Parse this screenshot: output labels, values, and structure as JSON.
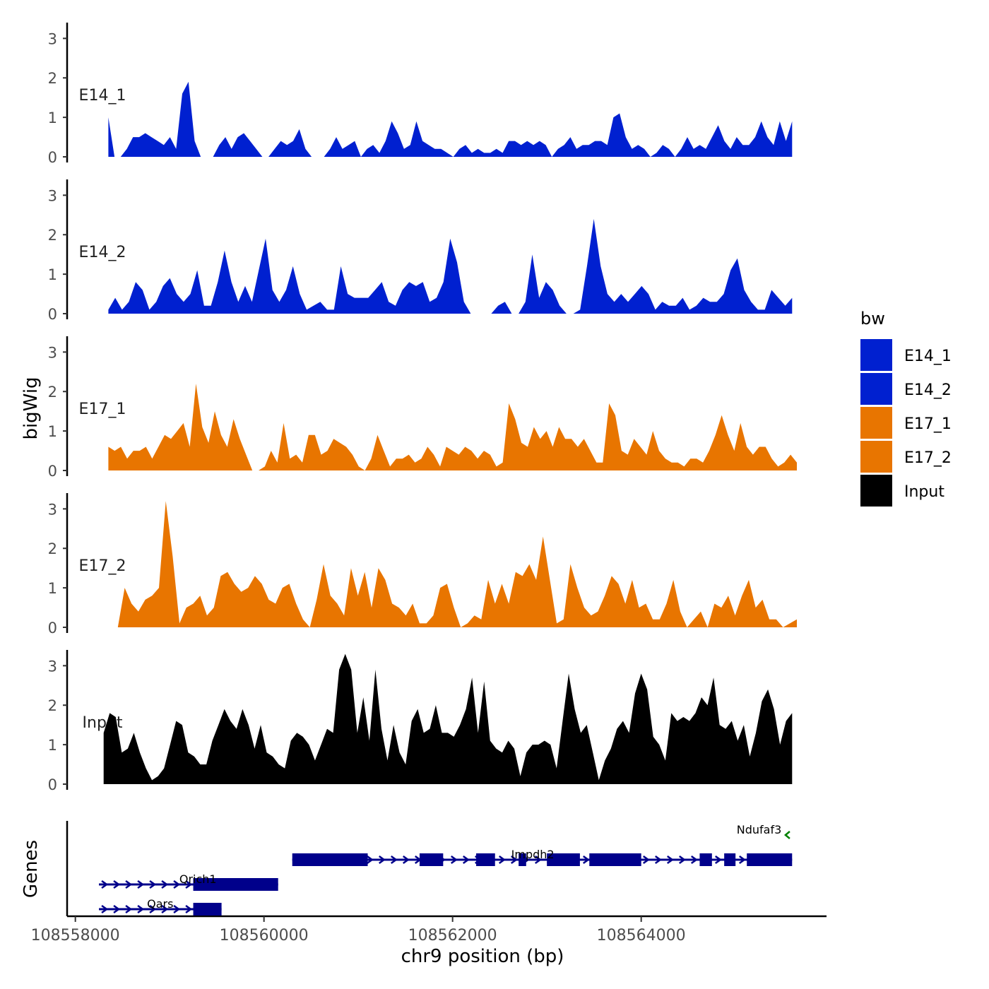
{
  "chart_data": {
    "type": "area",
    "ylabel": "bigWig",
    "xlabel": "chr9 position (bp)",
    "genes_label": "Genes",
    "ylim": [
      0,
      3.4
    ],
    "xlim": [
      108557950,
      108565950
    ],
    "y_ticks": [
      "0",
      "1",
      "2",
      "3"
    ],
    "x_ticks": [
      {
        "value": 108558000,
        "label": "108558000"
      },
      {
        "value": 108560000,
        "label": "108560000"
      },
      {
        "value": 108562000,
        "label": "108562000"
      },
      {
        "value": 108564000,
        "label": "108564000"
      }
    ],
    "legend": {
      "title": "bw",
      "entries": [
        {
          "label": "E14_1",
          "color": "#0020D0"
        },
        {
          "label": "E14_2",
          "color": "#0020D0"
        },
        {
          "label": "E17_1",
          "color": "#E87500"
        },
        {
          "label": "E17_2",
          "color": "#E87500"
        },
        {
          "label": "Input",
          "color": "#000000"
        }
      ]
    },
    "series": [
      {
        "name": "E14_1",
        "color": "#0020D0",
        "x_start": 108558350,
        "x_end": 108565600,
        "values": [
          1.0,
          0.0,
          0.0,
          0.2,
          0.5,
          0.5,
          0.6,
          0.5,
          0.4,
          0.3,
          0.5,
          0.2,
          1.6,
          1.9,
          0.4,
          0.0,
          0.0,
          0.0,
          0.3,
          0.5,
          0.2,
          0.5,
          0.6,
          0.4,
          0.2,
          0.0,
          0.0,
          0.2,
          0.4,
          0.3,
          0.4,
          0.7,
          0.2,
          0.0,
          0.0,
          0.0,
          0.2,
          0.5,
          0.2,
          0.3,
          0.4,
          0.0,
          0.2,
          0.3,
          0.1,
          0.4,
          0.9,
          0.6,
          0.2,
          0.3,
          0.9,
          0.4,
          0.3,
          0.2,
          0.2,
          0.1,
          0.0,
          0.2,
          0.3,
          0.1,
          0.2,
          0.1,
          0.1,
          0.2,
          0.1,
          0.4,
          0.4,
          0.3,
          0.4,
          0.3,
          0.4,
          0.3,
          0.0,
          0.2,
          0.3,
          0.5,
          0.2,
          0.3,
          0.3,
          0.4,
          0.4,
          0.3,
          1.0,
          1.1,
          0.5,
          0.2,
          0.3,
          0.2,
          0.0,
          0.1,
          0.3,
          0.2,
          0.0,
          0.2,
          0.5,
          0.2,
          0.3,
          0.2,
          0.5,
          0.8,
          0.4,
          0.2,
          0.5,
          0.3,
          0.3,
          0.5,
          0.9,
          0.5,
          0.3,
          0.9,
          0.4,
          0.9
        ]
      },
      {
        "name": "E14_2",
        "color": "#0020D0",
        "x_start": 108558350,
        "x_end": 108565600,
        "values": [
          0.1,
          0.4,
          0.1,
          0.3,
          0.8,
          0.6,
          0.1,
          0.3,
          0.7,
          0.9,
          0.5,
          0.3,
          0.5,
          1.1,
          0.2,
          0.2,
          0.8,
          1.6,
          0.8,
          0.3,
          0.7,
          0.3,
          1.1,
          1.9,
          0.6,
          0.3,
          0.6,
          1.2,
          0.5,
          0.1,
          0.2,
          0.3,
          0.1,
          0.1,
          1.2,
          0.5,
          0.4,
          0.4,
          0.4,
          0.6,
          0.8,
          0.3,
          0.2,
          0.6,
          0.8,
          0.7,
          0.8,
          0.3,
          0.4,
          0.8,
          1.9,
          1.3,
          0.3,
          0.0,
          0.0,
          0.0,
          0.0,
          0.2,
          0.3,
          0.0,
          0.0,
          0.3,
          1.5,
          0.4,
          0.8,
          0.6,
          0.2,
          0.0,
          0.0,
          0.1,
          1.2,
          2.4,
          1.2,
          0.5,
          0.3,
          0.5,
          0.3,
          0.5,
          0.7,
          0.5,
          0.1,
          0.3,
          0.2,
          0.2,
          0.4,
          0.1,
          0.2,
          0.4,
          0.3,
          0.3,
          0.5,
          1.1,
          1.4,
          0.6,
          0.3,
          0.1,
          0.1,
          0.6,
          0.4,
          0.2,
          0.4
        ]
      },
      {
        "name": "E17_1",
        "color": "#E87500",
        "x_start": 108558350,
        "x_end": 108565650,
        "values": [
          0.6,
          0.5,
          0.6,
          0.3,
          0.5,
          0.5,
          0.6,
          0.3,
          0.6,
          0.9,
          0.8,
          1.0,
          1.2,
          0.6,
          2.2,
          1.1,
          0.7,
          1.5,
          0.9,
          0.6,
          1.3,
          0.8,
          0.4,
          0.0,
          0.0,
          0.1,
          0.5,
          0.2,
          1.2,
          0.3,
          0.4,
          0.2,
          0.9,
          0.9,
          0.4,
          0.5,
          0.8,
          0.7,
          0.6,
          0.4,
          0.1,
          0.0,
          0.3,
          0.9,
          0.5,
          0.1,
          0.3,
          0.3,
          0.4,
          0.2,
          0.3,
          0.6,
          0.4,
          0.1,
          0.6,
          0.5,
          0.4,
          0.6,
          0.5,
          0.3,
          0.5,
          0.4,
          0.1,
          0.2,
          1.7,
          1.3,
          0.7,
          0.6,
          1.1,
          0.8,
          1.0,
          0.6,
          1.1,
          0.8,
          0.8,
          0.6,
          0.8,
          0.5,
          0.2,
          0.2,
          1.7,
          1.4,
          0.5,
          0.4,
          0.8,
          0.6,
          0.4,
          1.0,
          0.5,
          0.3,
          0.2,
          0.2,
          0.1,
          0.3,
          0.3,
          0.2,
          0.5,
          0.9,
          1.4,
          0.9,
          0.5,
          1.2,
          0.6,
          0.4,
          0.6,
          0.6,
          0.3,
          0.1,
          0.2,
          0.4,
          0.2
        ]
      },
      {
        "name": "E17_2",
        "color": "#E87500",
        "x_start": 108558450,
        "x_end": 108565650,
        "values": [
          0.0,
          1.0,
          0.6,
          0.4,
          0.7,
          0.8,
          1.0,
          3.2,
          1.8,
          0.1,
          0.5,
          0.6,
          0.8,
          0.3,
          0.5,
          1.3,
          1.4,
          1.1,
          0.9,
          1.0,
          1.3,
          1.1,
          0.7,
          0.6,
          1.0,
          1.1,
          0.6,
          0.2,
          0.0,
          0.7,
          1.6,
          0.8,
          0.6,
          0.3,
          1.5,
          0.8,
          1.4,
          0.5,
          1.5,
          1.2,
          0.6,
          0.5,
          0.3,
          0.6,
          0.1,
          0.1,
          0.3,
          1.0,
          1.1,
          0.5,
          0.0,
          0.1,
          0.3,
          0.2,
          1.2,
          0.6,
          1.1,
          0.6,
          1.4,
          1.3,
          1.6,
          1.2,
          2.3,
          1.2,
          0.1,
          0.2,
          1.6,
          1.0,
          0.5,
          0.3,
          0.4,
          0.8,
          1.3,
          1.1,
          0.6,
          1.2,
          0.5,
          0.6,
          0.2,
          0.2,
          0.6,
          1.2,
          0.4,
          0.0,
          0.2,
          0.4,
          0.0,
          0.6,
          0.5,
          0.8,
          0.3,
          0.8,
          1.2,
          0.5,
          0.7,
          0.2,
          0.2,
          0.0,
          0.1,
          0.2
        ]
      },
      {
        "name": "Input",
        "color": "#000000",
        "x_start": 108558300,
        "x_end": 108565600,
        "values": [
          1.3,
          1.8,
          1.7,
          0.8,
          0.9,
          1.3,
          0.8,
          0.4,
          0.1,
          0.2,
          0.4,
          1.0,
          1.6,
          1.5,
          0.8,
          0.7,
          0.5,
          0.5,
          1.1,
          1.5,
          1.9,
          1.6,
          1.4,
          1.9,
          1.5,
          0.9,
          1.5,
          0.8,
          0.7,
          0.5,
          0.4,
          1.1,
          1.3,
          1.2,
          1.0,
          0.6,
          1.0,
          1.4,
          1.3,
          2.9,
          3.3,
          2.9,
          1.3,
          2.2,
          1.1,
          2.9,
          1.4,
          0.6,
          1.5,
          0.8,
          0.5,
          1.6,
          1.9,
          1.3,
          1.4,
          2.0,
          1.3,
          1.3,
          1.2,
          1.5,
          1.9,
          2.7,
          1.3,
          2.6,
          1.1,
          0.9,
          0.8,
          1.1,
          0.9,
          0.2,
          0.8,
          1.0,
          1.0,
          1.1,
          1.0,
          0.4,
          1.6,
          2.8,
          1.9,
          1.3,
          1.5,
          0.8,
          0.1,
          0.6,
          0.9,
          1.4,
          1.6,
          1.3,
          2.3,
          2.8,
          2.4,
          1.2,
          1.0,
          0.6,
          1.8,
          1.6,
          1.7,
          1.6,
          1.8,
          2.2,
          2.0,
          2.7,
          1.5,
          1.4,
          1.6,
          1.1,
          1.5,
          0.7,
          1.3,
          2.1,
          2.4,
          1.9,
          1.0,
          1.6,
          1.8
        ]
      }
    ],
    "genes": [
      {
        "name": "Ndufaf3",
        "color": "#008000",
        "strand": "-",
        "row": 0,
        "start": 108565530,
        "end": 108565580,
        "exons": [],
        "label_x": 108565250
      },
      {
        "name": "Impdh2",
        "color": "#00008B",
        "strand": "+",
        "row": 1,
        "start": 108560300,
        "end": 108565600,
        "label_x": 108562850,
        "exons": [
          [
            108560300,
            108561100
          ],
          [
            108561650,
            108561900
          ],
          [
            108562250,
            108562450
          ],
          [
            108562700,
            108562780
          ],
          [
            108563000,
            108563350
          ],
          [
            108563450,
            108564000
          ],
          [
            108564620,
            108564750
          ],
          [
            108564880,
            108565000
          ],
          [
            108565120,
            108565600
          ]
        ]
      },
      {
        "name": "Qrich1",
        "color": "#00008B",
        "strand": "+",
        "row": 2,
        "start": 108558250,
        "end": 108560150,
        "label_x": 108559300,
        "exons": [
          [
            108559250,
            108560150
          ]
        ]
      },
      {
        "name": "Qars",
        "color": "#00008B",
        "strand": "+",
        "row": 3,
        "start": 108558250,
        "end": 108559550,
        "label_x": 108558900,
        "exons": [
          [
            108559250,
            108559550
          ]
        ]
      }
    ]
  }
}
